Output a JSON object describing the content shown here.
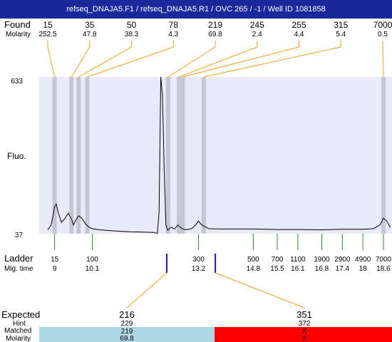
{
  "title": "refseq_DNAJA5.F1 / refseq_DNAJA5.R1 / OVC 265 / -1 / Well ID 1081858",
  "labels": {
    "found": "Found",
    "molarity": "Molarity",
    "fluo": "Fluo.",
    "ladder": "Ladder",
    "mig_time": "Mig. time",
    "expected": "Expected",
    "hint": "Hint",
    "matched": "Matched",
    "molarity_row": "Molarity"
  },
  "colors": {
    "title_bg": "#1a2a9c",
    "plot_bg": "#e9e9f7",
    "band": "#c6c6d2",
    "leader": "#f0a020",
    "ladder_tick": "#2e8b2e",
    "marker": "#1a1a8c",
    "matched_bg": "#add8e6",
    "unmatched_bg": "#ff0000"
  },
  "chart_data": {
    "type": "line",
    "ylabel": "Fluo.",
    "ylim": [
      37,
      633
    ],
    "y_ticks": [
      "633",
      "37"
    ],
    "x_scale": "log",
    "ladder": {
      "sizes": [
        15,
        100,
        300,
        500,
        700,
        1100,
        1900,
        2900,
        4900,
        7000
      ],
      "mig_times": [
        9,
        10.1,
        13.2,
        14.8,
        15.5,
        16.1,
        16.8,
        17.4,
        18,
        18.6
      ]
    },
    "found_peaks": [
      {
        "size": 15,
        "molarity": 252.5
      },
      {
        "size": 35,
        "molarity": 47.8
      },
      {
        "size": 50,
        "molarity": 38.3
      },
      {
        "size": 78,
        "molarity": 4.3
      },
      {
        "size": 219,
        "molarity": 69.8
      },
      {
        "size": 245,
        "molarity": 2.4
      },
      {
        "size": 255,
        "molarity": 4.4
      },
      {
        "size": 315,
        "molarity": 5.4
      },
      {
        "size": 7000,
        "molarity": 0.5
      }
    ],
    "trace": {
      "x": [
        8.8,
        8.9,
        9.0,
        9.05,
        9.1,
        9.2,
        9.3,
        9.4,
        9.5,
        9.55,
        9.6,
        9.7,
        9.8,
        9.9,
        10.0,
        10.1,
        10.3,
        10.5,
        10.8,
        11.2,
        11.6,
        11.9,
        12.0,
        12.05,
        12.1,
        12.15,
        12.2,
        12.25,
        12.3,
        12.4,
        12.5,
        12.6,
        12.7,
        12.8,
        13.0,
        13.1,
        13.2,
        13.3,
        13.5,
        13.8,
        14.2,
        14.8,
        15.5,
        16.1,
        16.8,
        17.4,
        18.0,
        18.3,
        18.5,
        18.6,
        18.7,
        18.8
      ],
      "y": [
        52,
        70,
        140,
        150,
        120,
        80,
        95,
        115,
        90,
        70,
        85,
        105,
        95,
        75,
        62,
        56,
        52,
        50,
        47,
        44,
        43,
        42,
        38,
        120,
        633,
        560,
        280,
        70,
        50,
        62,
        55,
        70,
        58,
        52,
        56,
        68,
        85,
        70,
        56,
        55,
        55,
        55,
        53,
        53,
        52,
        54,
        54,
        56,
        70,
        96,
        85,
        60
      ]
    },
    "expected": [
      {
        "size": "216",
        "hint": "229",
        "matched": "219",
        "molarity": "69.8",
        "status": "matched"
      },
      {
        "size": "351",
        "hint": "372",
        "matched": "X",
        "molarity": "X",
        "status": "unmatched"
      }
    ]
  }
}
